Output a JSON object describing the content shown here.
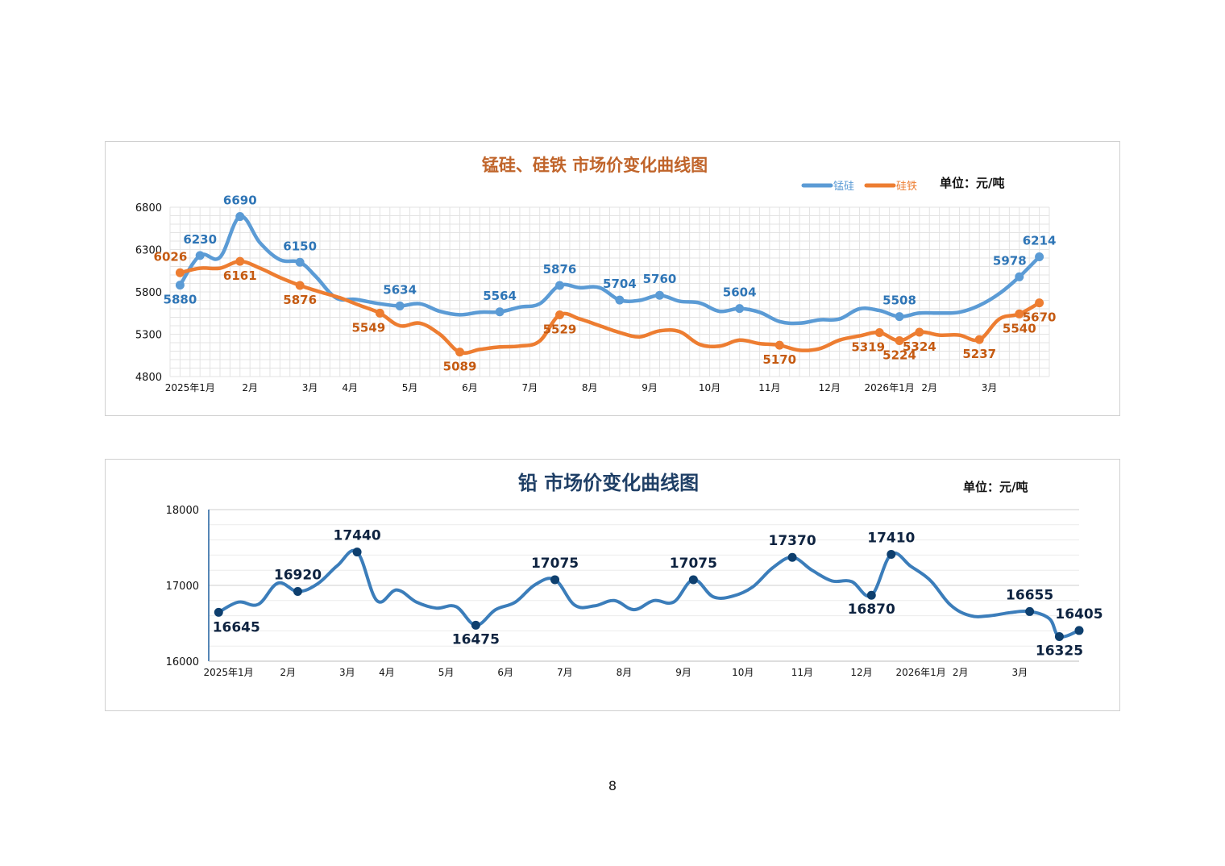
{
  "page_number": "8",
  "chart_data": [
    {
      "type": "line",
      "title": "锰硅、硅铁 市场价变化曲线图",
      "unit_label": "单位：元/吨",
      "legend_position": "top-right",
      "grid": true,
      "ylim": [
        4800,
        6800
      ],
      "yticks": [
        4800,
        5300,
        5800,
        6300,
        6800
      ],
      "x_ticks": [
        {
          "label": "2025年1月",
          "x": 1
        },
        {
          "label": "2月",
          "x": 4
        },
        {
          "label": "3月",
          "x": 7
        },
        {
          "label": "4月",
          "x": 9
        },
        {
          "label": "5月",
          "x": 12
        },
        {
          "label": "6月",
          "x": 15
        },
        {
          "label": "7月",
          "x": 18
        },
        {
          "label": "8月",
          "x": 21
        },
        {
          "label": "9月",
          "x": 24
        },
        {
          "label": "10月",
          "x": 27
        },
        {
          "label": "11月",
          "x": 30
        },
        {
          "label": "12月",
          "x": 33
        },
        {
          "label": "2026年1月",
          "x": 36
        },
        {
          "label": "2月",
          "x": 38
        },
        {
          "label": "3月",
          "x": 41
        }
      ],
      "xlim": [
        0,
        44
      ],
      "series": [
        {
          "name": "锰硅",
          "color": "#5b9bd5",
          "label_color": "#2e75b6",
          "points": [
            [
              0.5,
              5880
            ],
            [
              1.5,
              6230
            ],
            [
              2.5,
              6210
            ],
            [
              3.5,
              6690
            ],
            [
              4.5,
              6380
            ],
            [
              5.5,
              6180
            ],
            [
              6.5,
              6150
            ],
            [
              7.3,
              5980
            ],
            [
              8.3,
              5730
            ],
            [
              9.3,
              5710
            ],
            [
              10.5,
              5660
            ],
            [
              11.5,
              5634
            ],
            [
              12.5,
              5660
            ],
            [
              13.5,
              5570
            ],
            [
              14.5,
              5530
            ],
            [
              15.5,
              5560
            ],
            [
              16.5,
              5564
            ],
            [
              17.5,
              5620
            ],
            [
              18.5,
              5660
            ],
            [
              19.5,
              5876
            ],
            [
              20.5,
              5850
            ],
            [
              21.5,
              5850
            ],
            [
              22.5,
              5704
            ],
            [
              23.5,
              5700
            ],
            [
              24.5,
              5760
            ],
            [
              25.5,
              5690
            ],
            [
              26.5,
              5670
            ],
            [
              27.5,
              5570
            ],
            [
              28.5,
              5604
            ],
            [
              29.5,
              5560
            ],
            [
              30.5,
              5450
            ],
            [
              31.5,
              5430
            ],
            [
              32.5,
              5470
            ],
            [
              33.5,
              5480
            ],
            [
              34.5,
              5600
            ],
            [
              35.5,
              5580
            ],
            [
              36.5,
              5508
            ],
            [
              37.5,
              5550
            ],
            [
              38.5,
              5550
            ],
            [
              39.5,
              5560
            ],
            [
              40.5,
              5640
            ],
            [
              41.5,
              5780
            ],
            [
              42.5,
              5978
            ],
            [
              43.5,
              6214
            ]
          ],
          "labels": [
            {
              "x": 0.5,
              "y": 5880,
              "text": "5880",
              "pos": "below"
            },
            {
              "x": 1.5,
              "y": 6230,
              "text": "6230",
              "pos": "above"
            },
            {
              "x": 3.5,
              "y": 6690,
              "text": "6690",
              "pos": "above"
            },
            {
              "x": 6.5,
              "y": 6150,
              "text": "6150",
              "pos": "above"
            },
            {
              "x": 11.5,
              "y": 5634,
              "text": "5634",
              "pos": "above"
            },
            {
              "x": 16.5,
              "y": 5564,
              "text": "5564",
              "pos": "above"
            },
            {
              "x": 19.5,
              "y": 5876,
              "text": "5876",
              "pos": "above"
            },
            {
              "x": 22.5,
              "y": 5704,
              "text": "5704",
              "pos": "above"
            },
            {
              "x": 24.5,
              "y": 5760,
              "text": "5760",
              "pos": "above"
            },
            {
              "x": 28.5,
              "y": 5604,
              "text": "5604",
              "pos": "above"
            },
            {
              "x": 36.5,
              "y": 5508,
              "text": "5508",
              "pos": "above"
            },
            {
              "x": 42.5,
              "y": 5978,
              "text": "5978",
              "pos": "aboveleft"
            },
            {
              "x": 43.5,
              "y": 6214,
              "text": "6214",
              "pos": "above"
            }
          ]
        },
        {
          "name": "硅铁",
          "color": "#ed7d31",
          "label_color": "#c55a11",
          "points": [
            [
              0.5,
              6026
            ],
            [
              1.5,
              6080
            ],
            [
              2.5,
              6080
            ],
            [
              3.5,
              6161
            ],
            [
              4.5,
              6080
            ],
            [
              5.5,
              5970
            ],
            [
              6.5,
              5876
            ],
            [
              7.5,
              5800
            ],
            [
              8.5,
              5730
            ],
            [
              9.5,
              5640
            ],
            [
              10.5,
              5549
            ],
            [
              11.5,
              5400
            ],
            [
              12.5,
              5430
            ],
            [
              13.5,
              5300
            ],
            [
              14.5,
              5089
            ],
            [
              15.5,
              5120
            ],
            [
              16.5,
              5150
            ],
            [
              17.5,
              5160
            ],
            [
              18.5,
              5220
            ],
            [
              19.5,
              5529
            ],
            [
              20.5,
              5480
            ],
            [
              21.5,
              5400
            ],
            [
              22.5,
              5320
            ],
            [
              23.5,
              5270
            ],
            [
              24.5,
              5340
            ],
            [
              25.5,
              5330
            ],
            [
              26.5,
              5180
            ],
            [
              27.5,
              5160
            ],
            [
              28.5,
              5230
            ],
            [
              29.5,
              5190
            ],
            [
              30.5,
              5170
            ],
            [
              31.5,
              5110
            ],
            [
              32.5,
              5130
            ],
            [
              33.5,
              5230
            ],
            [
              34.5,
              5280
            ],
            [
              35.5,
              5319
            ],
            [
              36.5,
              5224
            ],
            [
              37.5,
              5324
            ],
            [
              38.5,
              5290
            ],
            [
              39.5,
              5290
            ],
            [
              40.5,
              5237
            ],
            [
              41.5,
              5480
            ],
            [
              42.5,
              5540
            ],
            [
              43.5,
              5670
            ]
          ],
          "labels": [
            {
              "x": 0.5,
              "y": 6026,
              "text": "6026",
              "pos": "aboveleft"
            },
            {
              "x": 3.5,
              "y": 6161,
              "text": "6161",
              "pos": "below"
            },
            {
              "x": 6.5,
              "y": 5876,
              "text": "5876",
              "pos": "below"
            },
            {
              "x": 10.5,
              "y": 5549,
              "text": "5549",
              "pos": "belowleft"
            },
            {
              "x": 14.5,
              "y": 5089,
              "text": "5089",
              "pos": "below"
            },
            {
              "x": 19.5,
              "y": 5529,
              "text": "5529",
              "pos": "below"
            },
            {
              "x": 30.5,
              "y": 5170,
              "text": "5170",
              "pos": "below"
            },
            {
              "x": 35.5,
              "y": 5319,
              "text": "5319",
              "pos": "belowleft"
            },
            {
              "x": 36.5,
              "y": 5224,
              "text": "5224",
              "pos": "below"
            },
            {
              "x": 37.5,
              "y": 5324,
              "text": "5324",
              "pos": "below"
            },
            {
              "x": 40.5,
              "y": 5237,
              "text": "5237",
              "pos": "below"
            },
            {
              "x": 42.5,
              "y": 5540,
              "text": "5540",
              "pos": "below"
            },
            {
              "x": 43.5,
              "y": 5670,
              "text": "5670",
              "pos": "below"
            }
          ]
        }
      ]
    },
    {
      "type": "line",
      "title": "铅  市场价变化曲线图",
      "unit_label": "单位：元/吨",
      "grid": true,
      "ylim": [
        16000,
        18000
      ],
      "yticks": [
        16000,
        17000,
        18000
      ],
      "x_ticks": [
        {
          "label": "2025年1月",
          "x": 1
        },
        {
          "label": "2月",
          "x": 4
        },
        {
          "label": "3月",
          "x": 7
        },
        {
          "label": "4月",
          "x": 9
        },
        {
          "label": "5月",
          "x": 12
        },
        {
          "label": "6月",
          "x": 15
        },
        {
          "label": "7月",
          "x": 18
        },
        {
          "label": "8月",
          "x": 21
        },
        {
          "label": "9月",
          "x": 24
        },
        {
          "label": "10月",
          "x": 27
        },
        {
          "label": "11月",
          "x": 30
        },
        {
          "label": "12月",
          "x": 33
        },
        {
          "label": "2026年1月",
          "x": 36
        },
        {
          "label": "2月",
          "x": 38
        },
        {
          "label": "3月",
          "x": 41
        }
      ],
      "xlim": [
        0,
        44
      ],
      "series": [
        {
          "name": "铅",
          "color": "#3b7dba",
          "marker_color": "#0e3f6e",
          "points": [
            [
              0.5,
              16645
            ],
            [
              1.5,
              16780
            ],
            [
              2.5,
              16750
            ],
            [
              3.5,
              17030
            ],
            [
              4.5,
              16920
            ],
            [
              5.5,
              17020
            ],
            [
              6.5,
              17260
            ],
            [
              7.5,
              17440
            ],
            [
              8.5,
              16800
            ],
            [
              9.5,
              16940
            ],
            [
              10.5,
              16780
            ],
            [
              11.5,
              16700
            ],
            [
              12.5,
              16720
            ],
            [
              13.5,
              16475
            ],
            [
              14.5,
              16680
            ],
            [
              15.5,
              16780
            ],
            [
              16.5,
              17010
            ],
            [
              17.5,
              17075
            ],
            [
              18.5,
              16740
            ],
            [
              19.5,
              16730
            ],
            [
              20.5,
              16800
            ],
            [
              21.5,
              16680
            ],
            [
              22.5,
              16800
            ],
            [
              23.5,
              16780
            ],
            [
              24.5,
              17075
            ],
            [
              25.5,
              16850
            ],
            [
              26.5,
              16860
            ],
            [
              27.5,
              16980
            ],
            [
              28.5,
              17230
            ],
            [
              29.5,
              17370
            ],
            [
              30.5,
              17200
            ],
            [
              31.5,
              17060
            ],
            [
              32.5,
              17050
            ],
            [
              33.5,
              16870
            ],
            [
              34.5,
              17410
            ],
            [
              35.5,
              17250
            ],
            [
              36.5,
              17060
            ],
            [
              37.5,
              16740
            ],
            [
              38.5,
              16600
            ],
            [
              39.5,
              16600
            ],
            [
              40.5,
              16640
            ],
            [
              41.5,
              16655
            ],
            [
              42.5,
              16560
            ],
            [
              43,
              16325
            ],
            [
              44,
              16405
            ]
          ],
          "labels": [
            {
              "x": 0.5,
              "y": 16645,
              "text": "16645",
              "pos": "belowright"
            },
            {
              "x": 4.5,
              "y": 16920,
              "text": "16920",
              "pos": "above"
            },
            {
              "x": 7.5,
              "y": 17440,
              "text": "17440",
              "pos": "above"
            },
            {
              "x": 13.5,
              "y": 16475,
              "text": "16475",
              "pos": "below"
            },
            {
              "x": 17.5,
              "y": 17075,
              "text": "17075",
              "pos": "above"
            },
            {
              "x": 24.5,
              "y": 17075,
              "text": "17075",
              "pos": "above"
            },
            {
              "x": 29.5,
              "y": 17370,
              "text": "17370",
              "pos": "above"
            },
            {
              "x": 33.5,
              "y": 16870,
              "text": "16870",
              "pos": "below"
            },
            {
              "x": 34.5,
              "y": 17410,
              "text": "17410",
              "pos": "above"
            },
            {
              "x": 41.5,
              "y": 16655,
              "text": "16655",
              "pos": "above"
            },
            {
              "x": 43,
              "y": 16325,
              "text": "16325",
              "pos": "below"
            },
            {
              "x": 44,
              "y": 16405,
              "text": "16405",
              "pos": "above"
            }
          ]
        }
      ]
    }
  ]
}
